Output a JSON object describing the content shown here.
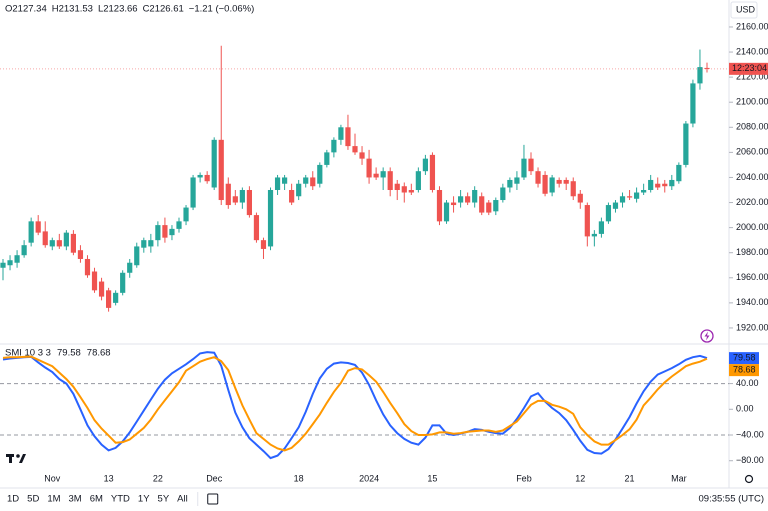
{
  "chart_data": [
    {
      "type": "candlestick",
      "header": [
        "O2127.34",
        "H2131.53",
        "L2123.66",
        "C2126.61",
        "−1.21 (−0.06%)"
      ],
      "currency": "USD",
      "countdown": "12:23:04",
      "up_color": "#26a69a",
      "down_color": "#ef5350",
      "categories": [
        null,
        null,
        null,
        null,
        null,
        null,
        null,
        "Nov",
        null,
        null,
        null,
        null,
        null,
        null,
        null,
        "13",
        null,
        null,
        null,
        null,
        null,
        null,
        "22",
        null,
        null,
        null,
        null,
        null,
        null,
        null,
        "Dec",
        null,
        null,
        null,
        null,
        null,
        null,
        null,
        null,
        null,
        null,
        null,
        "18",
        null,
        null,
        null,
        null,
        null,
        null,
        null,
        null,
        null,
        "2024",
        null,
        null,
        null,
        null,
        null,
        null,
        null,
        null,
        "15",
        null,
        null,
        null,
        null,
        null,
        null,
        null,
        null,
        null,
        null,
        null,
        null,
        "Feb",
        null,
        null,
        null,
        null,
        null,
        null,
        null,
        "12",
        null,
        null,
        null,
        null,
        null,
        null,
        "21",
        null,
        null,
        null,
        null,
        null,
        null,
        "Mar",
        null,
        null,
        null,
        null
      ],
      "open": [
        1968,
        1970,
        1972,
        1978,
        1988,
        2005,
        1997,
        1985,
        1990,
        1985,
        1995,
        1982,
        1975,
        1965,
        1957,
        1950,
        1940,
        1948,
        1964,
        1970,
        1984,
        1985,
        1990,
        2002,
        1994,
        1999,
        2005,
        2016,
        2040,
        2042,
        2032,
        2070,
        2035,
        2025,
        2020,
        2030,
        2010,
        1990,
        1985,
        2030,
        2035,
        2030,
        2025,
        2035,
        2040,
        2035,
        2050,
        2060,
        2070,
        2080,
        2065,
        2060,
        2055,
        2043,
        2040,
        2045,
        2035,
        2033,
        2030,
        2030,
        2045,
        2058,
        2030,
        2005,
        2020,
        2020,
        2025,
        2020,
        2025,
        2020,
        2013,
        2022,
        2032,
        2035,
        2040,
        2055,
        2045,
        2042,
        2028,
        2038,
        2038,
        2037,
        2027,
        2018,
        1993,
        1995,
        2005,
        2015,
        2020,
        2025,
        2023,
        2028,
        2030,
        2035,
        2035,
        2033,
        2037,
        2050,
        2083,
        2115,
        2127.34
      ],
      "high": [
        1975,
        1978,
        1982,
        1990,
        2008,
        2010,
        2005,
        1992,
        1995,
        1998,
        1998,
        1986,
        1978,
        1968,
        1960,
        1952,
        1950,
        1966,
        1975,
        1988,
        1992,
        1995,
        2005,
        2008,
        2002,
        2008,
        2018,
        2042,
        2044,
        2045,
        2072,
        2145,
        2040,
        2030,
        2032,
        2033,
        2012,
        1992,
        2032,
        2042,
        2042,
        2035,
        2038,
        2042,
        2045,
        2052,
        2062,
        2072,
        2082,
        2090,
        2075,
        2065,
        2062,
        2048,
        2048,
        2048,
        2038,
        2036,
        2035,
        2048,
        2058,
        2060,
        2033,
        2022,
        2025,
        2030,
        2028,
        2033,
        2028,
        2022,
        2024,
        2035,
        2040,
        2045,
        2066,
        2060,
        2048,
        2045,
        2042,
        2040,
        2040,
        2040,
        2030,
        2020,
        1998,
        2008,
        2020,
        2022,
        2028,
        2030,
        2032,
        2035,
        2042,
        2040,
        2038,
        2042,
        2052,
        2085,
        2118,
        2142,
        2131.53
      ],
      "low": [
        1958,
        1966,
        1968,
        1976,
        1985,
        1994,
        1984,
        1982,
        1983,
        1982,
        1978,
        1972,
        1960,
        1948,
        1942,
        1933,
        1938,
        1946,
        1960,
        1968,
        1980,
        1980,
        1985,
        1988,
        1990,
        1996,
        2002,
        2014,
        2036,
        2035,
        2030,
        2018,
        2015,
        2018,
        2015,
        2008,
        1988,
        1975,
        1982,
        2026,
        2030,
        2018,
        2022,
        2032,
        2030,
        2032,
        2048,
        2056,
        2066,
        2062,
        2058,
        2050,
        2035,
        2038,
        2030,
        2025,
        2022,
        2020,
        2026,
        2028,
        2042,
        2028,
        2002,
        2003,
        2012,
        2016,
        2018,
        2016,
        2010,
        2010,
        2010,
        2020,
        2028,
        2030,
        2038,
        2042,
        2032,
        2025,
        2025,
        2032,
        2030,
        2022,
        2015,
        1985,
        1985,
        1992,
        2003,
        2012,
        2016,
        2022,
        2020,
        2026,
        2028,
        2030,
        2028,
        2030,
        2035,
        2048,
        2080,
        2110,
        2123.66
      ],
      "close": [
        1972,
        1974,
        1978,
        1986,
        2005,
        1996,
        1986,
        1990,
        1985,
        1996,
        1980,
        1975,
        1962,
        1950,
        1945,
        1936,
        1948,
        1964,
        1972,
        1985,
        1990,
        1990,
        2002,
        1992,
        1999,
        2005,
        2016,
        2040,
        2042,
        2037,
        2070,
        2022,
        2018,
        2020,
        2030,
        2010,
        1990,
        1983,
        2030,
        2040,
        2040,
        2020,
        2035,
        2040,
        2033,
        2050,
        2060,
        2070,
        2080,
        2065,
        2060,
        2055,
        2040,
        2040,
        2045,
        2030,
        2030,
        2028,
        2028,
        2045,
        2055,
        2030,
        2005,
        2020,
        2018,
        2025,
        2020,
        2030,
        2012,
        2012,
        2022,
        2032,
        2038,
        2040,
        2055,
        2045,
        2035,
        2027,
        2040,
        2035,
        2035,
        2025,
        2020,
        1993,
        1995,
        2005,
        2018,
        2020,
        2025,
        2024,
        2028,
        2030,
        2038,
        2032,
        2033,
        2038,
        2050,
        2083,
        2115,
        2128,
        2126.61
      ],
      "ylim": [
        1908,
        2181.5
      ],
      "yticks": [
        {
          "value": 2160,
          "label": "2160.00"
        },
        {
          "value": 2140,
          "label": "2140.00"
        },
        {
          "value": 2120,
          "label": "2120.00"
        },
        {
          "value": 2100,
          "label": "2100.00"
        },
        {
          "value": 2080,
          "label": "2080.00"
        },
        {
          "value": 2060,
          "label": "2060.00"
        },
        {
          "value": 2040,
          "label": "2040.00"
        },
        {
          "value": 2020,
          "label": "2020.00"
        },
        {
          "value": 2000,
          "label": "2000.00"
        },
        {
          "value": 1980,
          "label": "1980.00"
        },
        {
          "value": 1960,
          "label": "1960.00"
        },
        {
          "value": 1940,
          "label": "1940.00"
        },
        {
          "value": 1920,
          "label": "1920.00"
        }
      ],
      "grid": false
    },
    {
      "type": "line",
      "title": "SMI 10 3 3",
      "series": [
        {
          "color": "#2962ff",
          "values": [
            77.5,
            79,
            80,
            81,
            81.5,
            73,
            65,
            58,
            47,
            40,
            24,
            0,
            -25,
            -42,
            -55,
            -64,
            -60,
            -50,
            -36,
            -19,
            -2,
            15,
            32,
            46,
            56,
            63,
            70,
            78,
            87,
            89,
            88,
            68,
            30,
            -5,
            -28,
            -45,
            -55,
            -65,
            -76,
            -72,
            -61,
            -45,
            -28,
            -4,
            24,
            48,
            63,
            71,
            73,
            72,
            69,
            57,
            38,
            14,
            -8,
            -25,
            -37,
            -46,
            -52,
            -55,
            -44,
            -25,
            -25,
            -38,
            -40,
            -38,
            -35,
            -31,
            -32,
            -35,
            -37,
            -38,
            -29,
            -15,
            2,
            20,
            25,
            12,
            2,
            -6,
            -17,
            -32,
            -49,
            -63,
            -68,
            -69,
            -62,
            -47,
            -30,
            -12,
            9,
            28,
            43,
            54,
            59,
            64,
            70,
            77,
            81,
            83,
            79.58
          ]
        },
        {
          "color": "#ff9800",
          "values": [
            80,
            81,
            81,
            81.5,
            82,
            77,
            72,
            67,
            57,
            47,
            35,
            19,
            2,
            -17,
            -30,
            -41,
            -52,
            -51,
            -47,
            -38,
            -29,
            -16,
            0,
            14,
            28,
            42,
            60,
            67,
            74,
            78,
            81,
            75,
            61,
            33,
            6,
            -16,
            -37,
            -46,
            -55,
            -61,
            -64,
            -60,
            -50,
            -38,
            -23,
            -8,
            10,
            27,
            41,
            60,
            64,
            62,
            53,
            43,
            27,
            10,
            -6,
            -23,
            -34,
            -40,
            -40,
            -39,
            -36,
            -36,
            -38,
            -37,
            -35,
            -34,
            -33,
            -33,
            -35,
            -33,
            -26,
            -19,
            -6,
            7,
            13,
            13,
            7,
            4,
            0,
            -7,
            -28,
            -40,
            -50,
            -55,
            -55,
            -48,
            -40,
            -31,
            -16,
            6,
            18,
            31,
            42,
            51,
            59,
            67,
            71,
            74,
            78.68
          ]
        }
      ],
      "bands": [
        40,
        -40
      ],
      "ylim": [
        -110,
        100
      ],
      "yticks": [
        {
          "value": 40,
          "label": "40.00"
        },
        {
          "value": 0,
          "label": "0.00"
        },
        {
          "value": -40,
          "label": "−40.00"
        },
        {
          "value": -80,
          "label": "−80.00"
        }
      ]
    }
  ],
  "toolbar": {
    "ranges": [
      "1D",
      "5D",
      "1M",
      "3M",
      "6M",
      "YTD",
      "1Y",
      "5Y",
      "All"
    ],
    "clock": "09:35:55 (UTC)"
  }
}
